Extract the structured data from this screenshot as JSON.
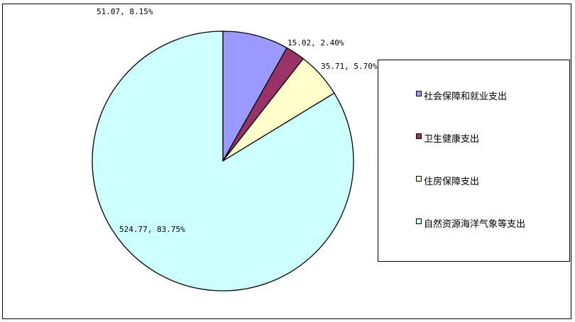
{
  "chart_data": {
    "type": "pie",
    "title": "",
    "legend_position": "right",
    "slices": [
      {
        "name": "社会保障和就业支出",
        "value": 51.07,
        "percent": "8.15%",
        "label": "51.07, 8.15%",
        "color": "#9999ff"
      },
      {
        "name": "卫生健康支出",
        "value": 15.02,
        "percent": "2.40%",
        "label": "15.02, 2.40%",
        "color": "#993366"
      },
      {
        "name": "住房保障支出",
        "value": 35.71,
        "percent": "5.70%",
        "label": "35.71, 5.70%",
        "color": "#ffffcc"
      },
      {
        "name": "自然资源海洋气象等支出",
        "value": 524.77,
        "percent": "83.75%",
        "label": "524.77, 83.75%",
        "color": "#ccffff"
      }
    ]
  }
}
